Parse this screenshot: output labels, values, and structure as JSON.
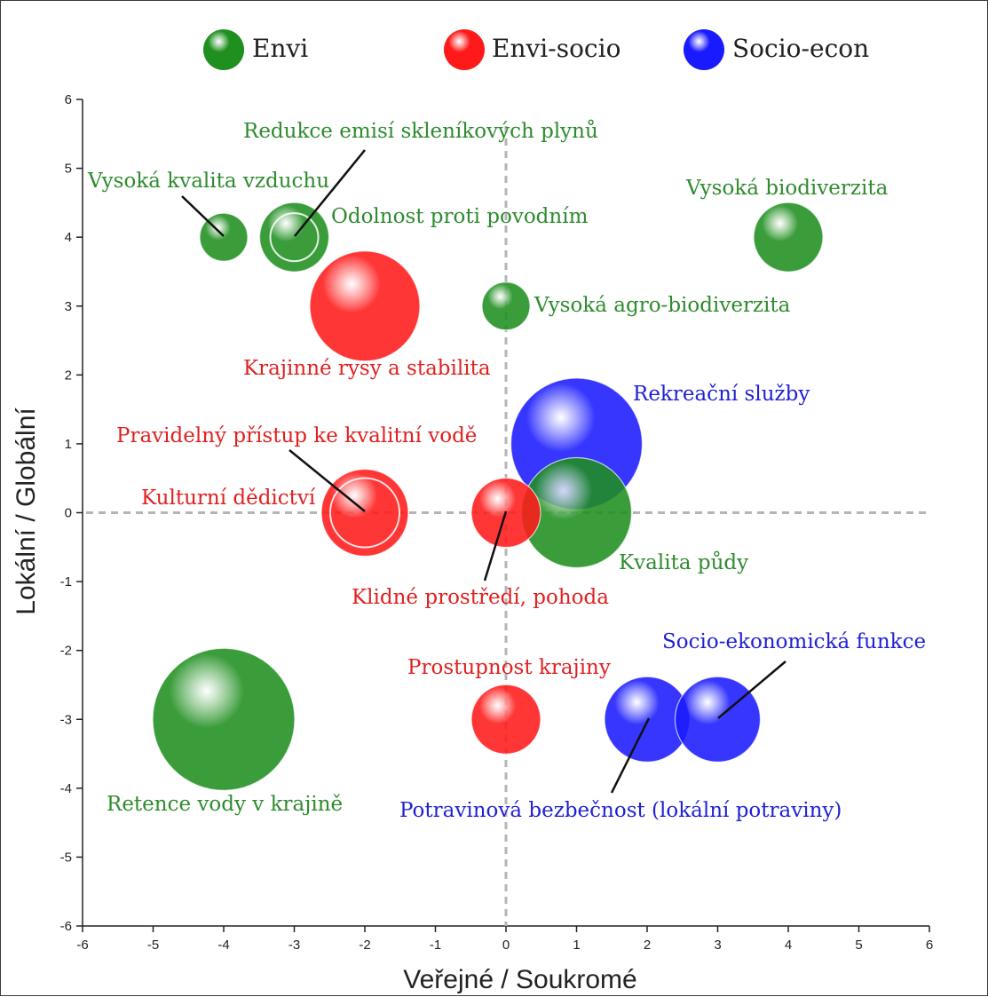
{
  "chart_data": {
    "type": "bubble",
    "xlabel": "Veřejné / Soukromé",
    "ylabel": "Lokální / Globální",
    "xlim": [
      -6,
      6
    ],
    "ylim": [
      -6,
      6
    ],
    "x_ticks": [
      -6,
      -5,
      -4,
      -3,
      -2,
      -1,
      0,
      1,
      2,
      3,
      4,
      5,
      6
    ],
    "y_ticks": [
      -6,
      -5,
      -4,
      -3,
      -2,
      -1,
      0,
      1,
      2,
      3,
      4,
      5,
      6
    ],
    "grid": false,
    "zero_lines": true,
    "legend_position": "top",
    "series": [
      {
        "name": "Envi",
        "color": "#1f8f1f"
      },
      {
        "name": "Envi-socio",
        "color": "#ff1a1a"
      },
      {
        "name": "Socio-econ",
        "color": "#1a1aff"
      }
    ],
    "points": [
      {
        "label": "Vysoká kvalita vzduchu",
        "series": "Envi",
        "x": -4,
        "y": 4,
        "size": 1
      },
      {
        "label": "Redukce emisí skleníkových plynů",
        "series": "Envi",
        "x": -3,
        "y": 4,
        "size": 1
      },
      {
        "label": "Odolnost proti povodním",
        "series": "Envi",
        "x": -3,
        "y": 4,
        "size": 2
      },
      {
        "label": "Vysoká biodiverzita",
        "series": "Envi",
        "x": 4,
        "y": 4,
        "size": 2
      },
      {
        "label": "Vysoká agro-biodiverzita",
        "series": "Envi",
        "x": 0,
        "y": 3,
        "size": 1
      },
      {
        "label": "Krajinné rysy a stabilita",
        "series": "Envi-socio",
        "x": -2,
        "y": 3,
        "size": 5
      },
      {
        "label": "Rekreační služby",
        "series": "Socio-econ",
        "x": 1,
        "y": 1,
        "size": 7
      },
      {
        "label": "Pravidelný přístup ke kvalitní vodě",
        "series": "Envi-socio",
        "x": -2,
        "y": 0,
        "size": 2
      },
      {
        "label": "Kulturní dědictví",
        "series": "Envi-socio",
        "x": -2,
        "y": 0,
        "size": 3
      },
      {
        "label": "Klidné prostředí, pohoda",
        "series": "Envi-socio",
        "x": 0,
        "y": 0,
        "size": 2
      },
      {
        "label": "Kvalita půdy",
        "series": "Envi",
        "x": 1,
        "y": 0,
        "size": 5
      },
      {
        "label": "Prostupnost krajiny",
        "series": "Envi-socio",
        "x": 0,
        "y": -3,
        "size": 2
      },
      {
        "label": "Socio-ekonomická funkce",
        "series": "Socio-econ",
        "x": 3,
        "y": -3,
        "size": 3
      },
      {
        "label": "Potravinová bezbečnost (lokální potraviny)",
        "series": "Socio-econ",
        "x": 2,
        "y": -3,
        "size": 3
      },
      {
        "label": "Retence vody v krajině",
        "series": "Envi",
        "x": -4,
        "y": -3,
        "size": 8
      }
    ]
  }
}
